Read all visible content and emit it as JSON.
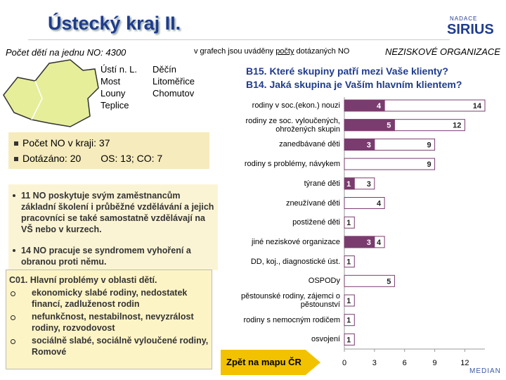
{
  "header": {
    "title": "Ústecký kraj II.",
    "children_per_no": "Počet dětí na jednu NO: 4300",
    "note_before": "v grafech jsou uváděny ",
    "note_underlined": "počty",
    "note_after": " dotázaných NO",
    "section": "NEZISKOVÉ ORGANIZACE",
    "logo_top": "NADACE",
    "logo_main": "SIRIUS"
  },
  "cities": [
    [
      "Ústí n. L.",
      "Most",
      "Louny",
      "Teplice"
    ],
    [
      "Děčín",
      "Litoměřice",
      "Chomutov"
    ]
  ],
  "summary": [
    "Počet NO v kraji: 37",
    "Dotázáno: 20",
    "OS: 13; CO: 7"
  ],
  "bullets": [
    "11 NO poskytuje svým zaměstnancům základní školení i průběžné vzdělávání a jejich pracovníci se také samostatně vzdělávají na VŠ nebo v kurzech.",
    "14 NO pracuje se syndromem vyhoření a obranou proti němu."
  ],
  "c01": {
    "title": "C01. Hlavní problémy v oblasti dětí.",
    "items": [
      "ekonomicky slabé rodiny, nedostatek financí, zadluženost rodin",
      "nefunkčnost, nestabilnost, nevyzrálost rodiny, rozvodovost",
      "sociálně slabé, sociálně vyloučené rodiny, Romové"
    ]
  },
  "button": "Zpět na mapu ČR",
  "footer": "MEDIAN",
  "chart_data": {
    "type": "bar",
    "orientation": "horizontal",
    "questions": [
      "B15. Které skupiny patří mezi Vaše klienty?",
      "B14. Jaká skupina je Vaším hlavním klientem?"
    ],
    "categories": [
      "rodiny v soc.(ekon.) nouzi",
      "rodiny ze soc. vyloučených,\nohrožených skupin",
      "zanedbávané děti",
      "rodiny s problémy, návykem",
      "týrané děti",
      "zneužívané děti",
      "postižené děti",
      "jiné neziskové organizace",
      "DD, koj., diagnostické úst.",
      "OSPODy",
      "pěstounské rodiny, zájemci o\npěstounství",
      "rodiny s nemocným rodičem",
      "osvojení"
    ],
    "series": [
      {
        "color": "#ffffff",
        "border": "#7a3c6e",
        "values": [
          14,
          12,
          9,
          9,
          3,
          4,
          1,
          4,
          1,
          5,
          1,
          1,
          1
        ]
      },
      {
        "color": "#7a3c6e",
        "border": "#7a3c6e",
        "values": [
          4,
          5,
          3,
          null,
          1,
          null,
          null,
          3,
          null,
          null,
          null,
          null,
          null
        ]
      }
    ],
    "xlim": [
      0,
      14
    ],
    "xticks": [
      0,
      3,
      6,
      9,
      12
    ]
  }
}
